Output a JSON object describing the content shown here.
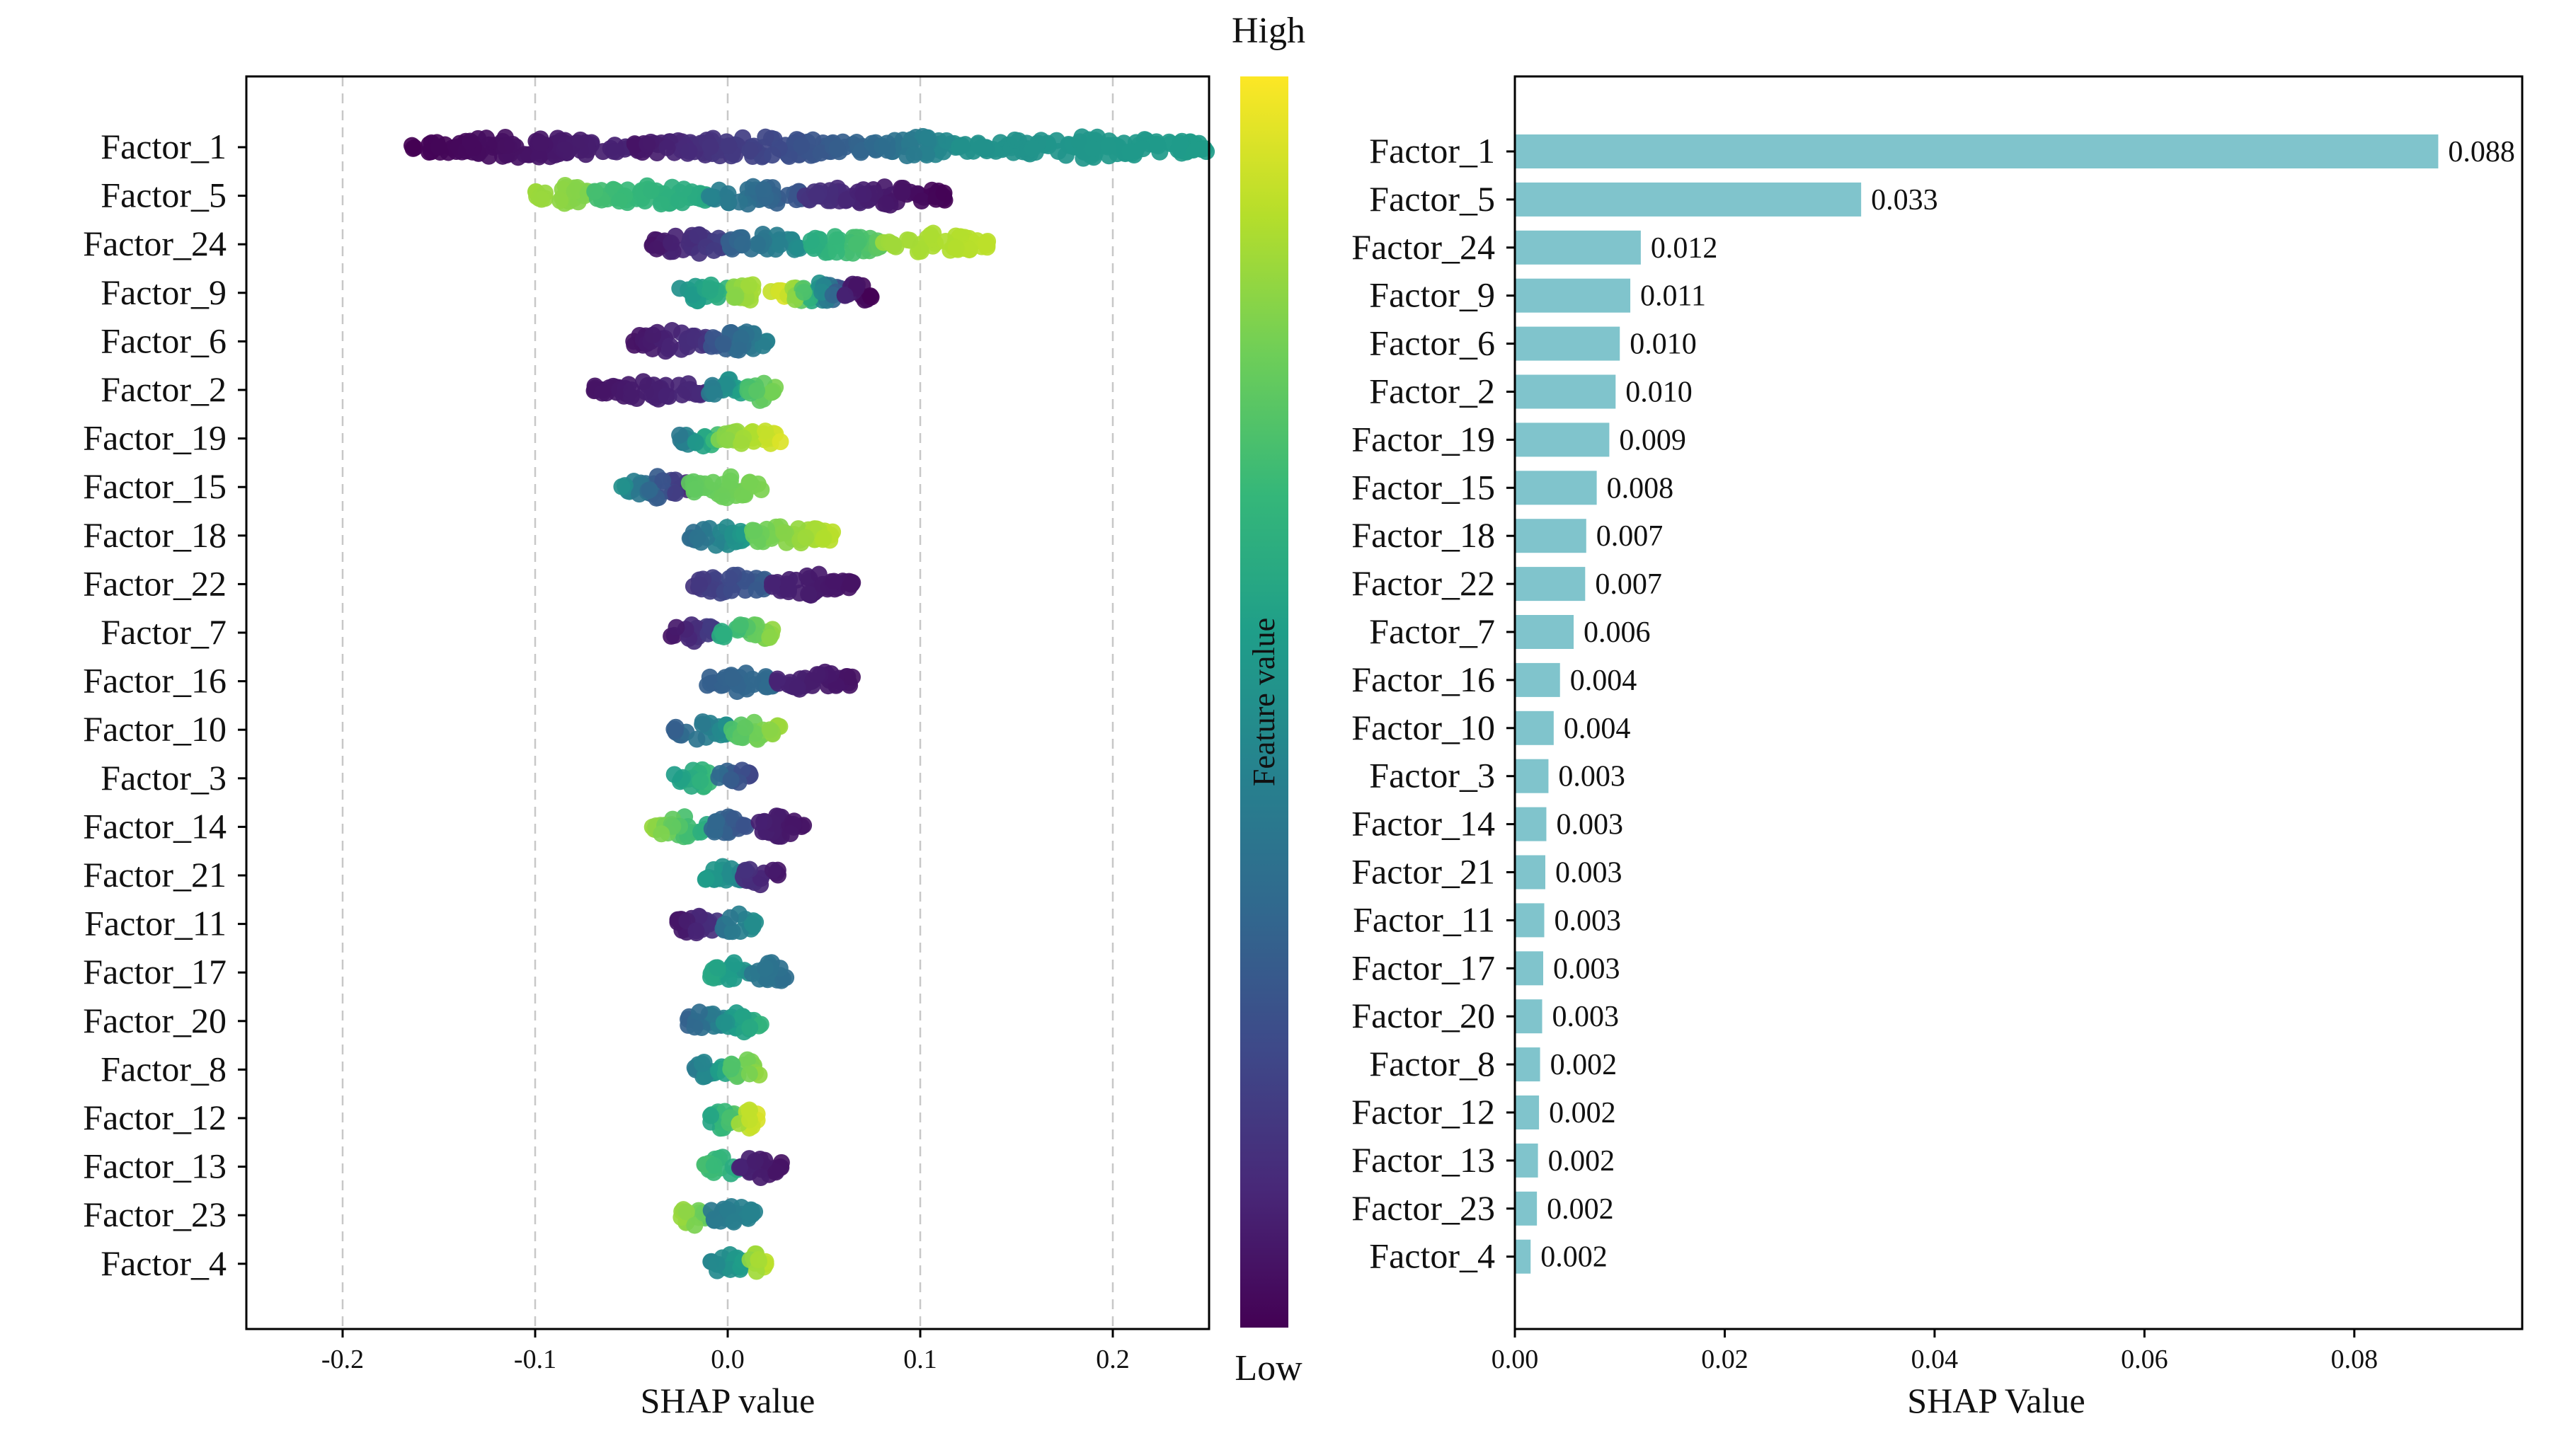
{
  "chart_data": [
    {
      "type": "scatter",
      "xlabel": "SHAP value",
      "xlim": [
        -0.25,
        0.25
      ],
      "xticks": [
        -0.2,
        -0.1,
        0.0,
        0.1,
        0.2
      ],
      "xtick_labels": [
        "-0.2",
        "-0.1",
        "0.0",
        "0.1",
        "0.2"
      ],
      "grid": true,
      "features": [
        "Factor_1",
        "Factor_5",
        "Factor_24",
        "Factor_9",
        "Factor_6",
        "Factor_2",
        "Factor_19",
        "Factor_15",
        "Factor_18",
        "Factor_22",
        "Factor_7",
        "Factor_16",
        "Factor_10",
        "Factor_3",
        "Factor_14",
        "Factor_21",
        "Factor_11",
        "Factor_17",
        "Factor_20",
        "Factor_8",
        "Factor_12",
        "Factor_13",
        "Factor_23",
        "Factor_4"
      ],
      "series": [
        {
          "feature": "Factor_1",
          "range": [
            -0.165,
            0.25
          ],
          "segments": [
            [
              -0.165,
              -0.05,
              0.0,
              0.1
            ],
            [
              -0.05,
              0.08,
              0.05,
              0.35
            ],
            [
              0.08,
              0.12,
              0.35,
              0.5
            ],
            [
              0.12,
              0.25,
              0.5,
              0.55
            ]
          ]
        },
        {
          "feature": "Factor_5",
          "range": [
            -0.1,
            0.115
          ],
          "segments": [
            [
              -0.1,
              -0.07,
              0.85,
              0.8
            ],
            [
              -0.07,
              -0.01,
              0.7,
              0.6
            ],
            [
              -0.01,
              0.04,
              0.45,
              0.25
            ],
            [
              0.04,
              0.115,
              0.15,
              0.0
            ]
          ]
        },
        {
          "feature": "Factor_24",
          "range": [
            -0.04,
            0.135
          ],
          "segments": [
            [
              -0.04,
              0.0,
              0.05,
              0.2
            ],
            [
              0.0,
              0.04,
              0.3,
              0.5
            ],
            [
              0.04,
              0.08,
              0.6,
              0.75
            ],
            [
              0.08,
              0.135,
              0.85,
              0.9
            ]
          ]
        },
        {
          "feature": "Factor_9",
          "range": [
            -0.025,
            0.075
          ],
          "segments": [
            [
              -0.025,
              0.0,
              0.5,
              0.65
            ],
            [
              0.0,
              0.03,
              0.8,
              0.95
            ],
            [
              0.03,
              0.06,
              0.95,
              0.2
            ],
            [
              0.06,
              0.075,
              0.1,
              0.0
            ]
          ]
        },
        {
          "feature": "Factor_6",
          "range": [
            -0.05,
            0.022
          ],
          "segments": [
            [
              -0.05,
              -0.01,
              0.05,
              0.15
            ],
            [
              -0.01,
              0.022,
              0.25,
              0.45
            ]
          ]
        },
        {
          "feature": "Factor_2",
          "range": [
            -0.07,
            0.025
          ],
          "segments": [
            [
              -0.07,
              -0.01,
              0.05,
              0.12
            ],
            [
              -0.01,
              0.01,
              0.4,
              0.6
            ],
            [
              0.01,
              0.025,
              0.7,
              0.8
            ]
          ]
        },
        {
          "feature": "Factor_19",
          "range": [
            -0.025,
            0.028
          ],
          "segments": [
            [
              -0.025,
              -0.005,
              0.4,
              0.7
            ],
            [
              -0.005,
              0.028,
              0.8,
              0.95
            ]
          ]
        },
        {
          "feature": "Factor_15",
          "range": [
            -0.055,
            0.018
          ],
          "segments": [
            [
              -0.055,
              -0.02,
              0.5,
              0.1
            ],
            [
              -0.02,
              0.018,
              0.75,
              0.8
            ]
          ]
        },
        {
          "feature": "Factor_18",
          "range": [
            -0.02,
            0.055
          ],
          "segments": [
            [
              -0.02,
              0.01,
              0.35,
              0.55
            ],
            [
              0.01,
              0.055,
              0.75,
              0.9
            ]
          ]
        },
        {
          "feature": "Factor_22",
          "range": [
            -0.018,
            0.065
          ],
          "segments": [
            [
              -0.018,
              0.02,
              0.15,
              0.3
            ],
            [
              0.02,
              0.065,
              0.1,
              0.05
            ]
          ]
        },
        {
          "feature": "Factor_7",
          "range": [
            -0.03,
            0.025
          ],
          "segments": [
            [
              -0.03,
              -0.005,
              0.05,
              0.2
            ],
            [
              -0.005,
              0.025,
              0.6,
              0.85
            ]
          ]
        },
        {
          "feature": "Factor_16",
          "range": [
            -0.012,
            0.065
          ],
          "segments": [
            [
              -0.012,
              0.025,
              0.3,
              0.35
            ],
            [
              0.025,
              0.065,
              0.1,
              0.05
            ]
          ]
        },
        {
          "feature": "Factor_10",
          "range": [
            -0.028,
            0.027
          ],
          "segments": [
            [
              -0.028,
              0.0,
              0.3,
              0.5
            ],
            [
              0.0,
              0.027,
              0.7,
              0.85
            ]
          ]
        },
        {
          "feature": "Factor_3",
          "range": [
            -0.028,
            0.012
          ],
          "segments": [
            [
              -0.028,
              -0.005,
              0.55,
              0.7
            ],
            [
              -0.005,
              0.012,
              0.35,
              0.2
            ]
          ]
        },
        {
          "feature": "Factor_14",
          "range": [
            -0.04,
            0.04
          ],
          "segments": [
            [
              -0.04,
              -0.01,
              0.85,
              0.6
            ],
            [
              -0.01,
              0.01,
              0.35,
              0.25
            ],
            [
              0.01,
              0.04,
              0.1,
              0.05
            ]
          ]
        },
        {
          "feature": "Factor_21",
          "range": [
            -0.012,
            0.028
          ],
          "segments": [
            [
              -0.012,
              0.008,
              0.55,
              0.45
            ],
            [
              0.008,
              0.028,
              0.15,
              0.05
            ]
          ]
        },
        {
          "feature": "Factor_11",
          "range": [
            -0.028,
            0.015
          ],
          "segments": [
            [
              -0.028,
              -0.005,
              0.05,
              0.15
            ],
            [
              -0.005,
              0.015,
              0.35,
              0.5
            ]
          ]
        },
        {
          "feature": "Factor_17",
          "range": [
            -0.01,
            0.035
          ],
          "segments": [
            [
              -0.01,
              0.012,
              0.6,
              0.5
            ],
            [
              0.012,
              0.035,
              0.4,
              0.35
            ]
          ]
        },
        {
          "feature": "Factor_20",
          "range": [
            -0.022,
            0.018
          ],
          "segments": [
            [
              -0.022,
              -0.002,
              0.3,
              0.45
            ],
            [
              -0.002,
              0.018,
              0.5,
              0.65
            ]
          ]
        },
        {
          "feature": "Factor_8",
          "range": [
            -0.018,
            0.018
          ],
          "segments": [
            [
              -0.018,
              0.0,
              0.4,
              0.6
            ],
            [
              0.0,
              0.018,
              0.7,
              0.85
            ]
          ]
        },
        {
          "feature": "Factor_12",
          "range": [
            -0.012,
            0.016
          ],
          "segments": [
            [
              -0.012,
              0.005,
              0.55,
              0.75
            ],
            [
              0.005,
              0.016,
              0.85,
              0.95
            ]
          ]
        },
        {
          "feature": "Factor_13",
          "range": [
            -0.012,
            0.028
          ],
          "segments": [
            [
              -0.012,
              0.005,
              0.7,
              0.6
            ],
            [
              0.005,
              0.028,
              0.1,
              0.05
            ]
          ]
        },
        {
          "feature": "Factor_23",
          "range": [
            -0.025,
            0.015
          ],
          "segments": [
            [
              -0.025,
              -0.01,
              0.85,
              0.75
            ],
            [
              -0.01,
              0.015,
              0.4,
              0.45
            ]
          ]
        },
        {
          "feature": "Factor_4",
          "range": [
            -0.01,
            0.02
          ],
          "segments": [
            [
              -0.01,
              0.008,
              0.45,
              0.55
            ],
            [
              0.008,
              0.02,
              0.8,
              0.9
            ]
          ]
        }
      ],
      "colorbar": {
        "label": "Feature value",
        "high_label": "High",
        "low_label": "Low",
        "colormap": [
          "#440154",
          "#482878",
          "#3e4989",
          "#31688e",
          "#26828e",
          "#1f9e89",
          "#35b779",
          "#6ece58",
          "#b5de2b",
          "#fde725"
        ]
      }
    },
    {
      "type": "bar",
      "orientation": "horizontal",
      "xlabel": "SHAP Value",
      "xlim": [
        0,
        0.096
      ],
      "xticks": [
        0.0,
        0.02,
        0.04,
        0.06,
        0.08
      ],
      "xtick_labels": [
        "0.00",
        "0.02",
        "0.04",
        "0.06",
        "0.08"
      ],
      "bar_color": "#80c4cc",
      "categories": [
        "Factor_1",
        "Factor_5",
        "Factor_24",
        "Factor_9",
        "Factor_6",
        "Factor_2",
        "Factor_19",
        "Factor_15",
        "Factor_18",
        "Factor_22",
        "Factor_7",
        "Factor_16",
        "Factor_10",
        "Factor_3",
        "Factor_14",
        "Factor_21",
        "Factor_11",
        "Factor_17",
        "Factor_20",
        "Factor_8",
        "Factor_12",
        "Factor_13",
        "Factor_23",
        "Factor_4"
      ],
      "values": [
        0.088,
        0.033,
        0.012,
        0.011,
        0.01,
        0.0096,
        0.009,
        0.0078,
        0.0068,
        0.0067,
        0.0056,
        0.0043,
        0.0037,
        0.0032,
        0.003,
        0.0029,
        0.0028,
        0.0027,
        0.0026,
        0.0024,
        0.0023,
        0.0022,
        0.0021,
        0.0015
      ],
      "value_labels": [
        "0.088",
        "0.033",
        "0.012",
        "0.011",
        "0.010",
        "0.010",
        "0.009",
        "0.008",
        "0.007",
        "0.007",
        "0.006",
        "0.004",
        "0.004",
        "0.003",
        "0.003",
        "0.003",
        "0.003",
        "0.003",
        "0.003",
        "0.002",
        "0.002",
        "0.002",
        "0.002",
        "0.002"
      ]
    }
  ]
}
